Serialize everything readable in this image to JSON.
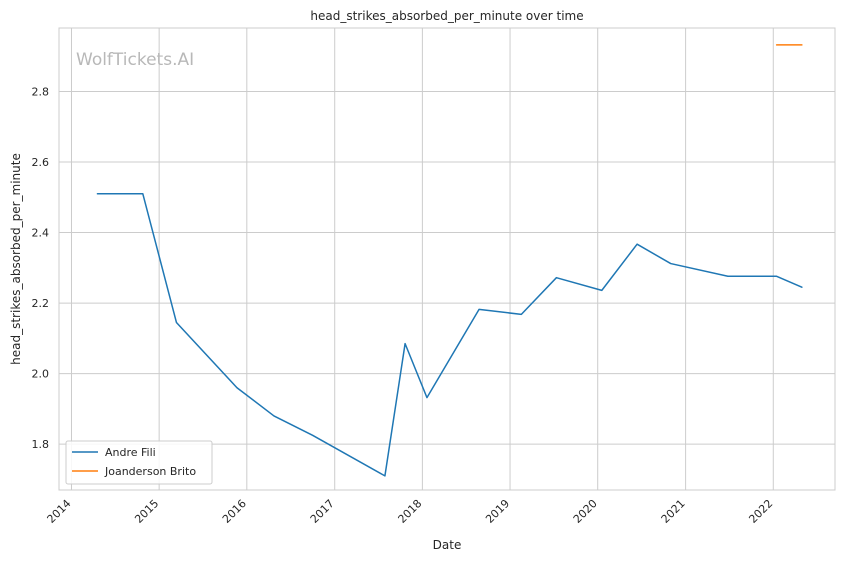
{
  "chart_data": {
    "type": "line",
    "title": "head_strikes_absorbed_per_minute over time",
    "xlabel": "Date",
    "ylabel": "head_strikes_absorbed_per_minute",
    "watermark": "WolfTickets.AI",
    "x_ticks": [
      "2014",
      "2015",
      "2016",
      "2017",
      "2018",
      "2019",
      "2020",
      "2021",
      "2022"
    ],
    "y_ticks": [
      "1.8",
      "2.0",
      "2.2",
      "2.4",
      "2.6",
      "2.8"
    ],
    "xlim": [
      "2013-11-10",
      "2022-09-15"
    ],
    "ylim": [
      1.67,
      2.98
    ],
    "grid": true,
    "legend_position": "lower-left",
    "series": [
      {
        "name": "Andre Fili",
        "color": "#1f77b4",
        "points": [
          [
            "2014-04-19",
            2.51
          ],
          [
            "2014-10-25",
            2.51
          ],
          [
            "2015-03-14",
            2.145
          ],
          [
            "2015-11-21",
            1.96
          ],
          [
            "2016-04-23",
            1.88
          ],
          [
            "2016-10-01",
            1.825
          ],
          [
            "2017-07-29",
            1.71
          ],
          [
            "2017-10-21",
            2.085
          ],
          [
            "2018-01-20",
            1.932
          ],
          [
            "2018-08-25",
            2.182
          ],
          [
            "2019-02-17",
            2.168
          ],
          [
            "2019-07-13",
            2.272
          ],
          [
            "2020-01-18",
            2.236
          ],
          [
            "2020-06-13",
            2.367
          ],
          [
            "2020-10-31",
            2.312
          ],
          [
            "2021-06-26",
            2.276
          ],
          [
            "2022-01-15",
            2.276
          ],
          [
            "2022-04-30",
            2.245
          ]
        ]
      },
      {
        "name": "Joanderson Brito",
        "color": "#ff7f0e",
        "points": [
          [
            "2022-01-15",
            2.932
          ],
          [
            "2022-04-30",
            2.932
          ]
        ]
      }
    ]
  }
}
